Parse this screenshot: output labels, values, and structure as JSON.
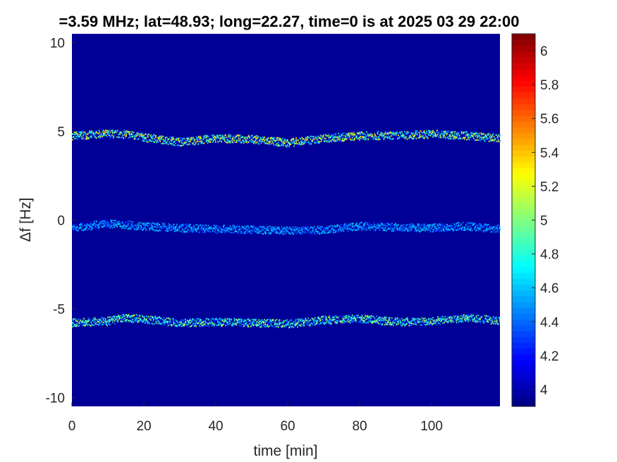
{
  "chart_data": {
    "type": "heatmap",
    "title": "=3.59 MHz;  lat=48.93; long=22.27, time=0 is at 2025 03 29 22:00",
    "xlabel": "time [min]",
    "ylabel": "Δf [Hz]",
    "xlim": [
      0,
      119
    ],
    "ylim": [
      -10.5,
      10.5
    ],
    "x_ticks": [
      "0",
      "20",
      "40",
      "60",
      "80",
      "100"
    ],
    "y_ticks": [
      "10",
      "5",
      "0",
      "-5",
      "-10"
    ],
    "colorbar": {
      "range": [
        3.9,
        6.1
      ],
      "ticks": [
        "6",
        "5.8",
        "5.6",
        "5.4",
        "5.2",
        "5",
        "4.8",
        "4.6",
        "4.4",
        "4.2",
        "4"
      ],
      "colormap": "jet"
    },
    "background_value": 3.95,
    "traces": [
      {
        "description": "upper trace",
        "x": [
          0,
          10,
          15,
          20,
          30,
          40,
          50,
          60,
          70,
          80,
          90,
          100,
          110,
          119
        ],
        "y": [
          4.75,
          4.85,
          4.85,
          4.65,
          4.4,
          4.6,
          4.55,
          4.35,
          4.6,
          4.75,
          4.75,
          4.85,
          4.75,
          4.6
        ],
        "peak_value": 5.45
      },
      {
        "description": "middle trace",
        "x": [
          0,
          10,
          20,
          30,
          40,
          50,
          60,
          70,
          80,
          90,
          100,
          110,
          119
        ],
        "y": [
          -0.45,
          -0.2,
          -0.35,
          -0.45,
          -0.5,
          -0.55,
          -0.6,
          -0.55,
          -0.35,
          -0.4,
          -0.45,
          -0.35,
          -0.5
        ],
        "peak_value": 4.7
      },
      {
        "description": "lower trace",
        "x": [
          0,
          10,
          15,
          20,
          30,
          40,
          50,
          60,
          70,
          80,
          90,
          100,
          110,
          119
        ],
        "y": [
          -5.8,
          -5.7,
          -5.5,
          -5.6,
          -5.8,
          -5.75,
          -5.8,
          -5.85,
          -5.65,
          -5.55,
          -5.75,
          -5.7,
          -5.5,
          -5.7
        ],
        "peak_value": 5.2
      }
    ]
  }
}
